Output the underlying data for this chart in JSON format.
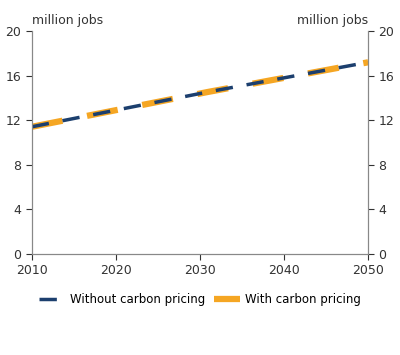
{
  "ylabel_left": "million jobs",
  "ylabel_right": "million jobs",
  "xlim": [
    2010,
    2050
  ],
  "ylim": [
    0,
    20
  ],
  "yticks": [
    0,
    4,
    8,
    12,
    16,
    20
  ],
  "xticks": [
    2010,
    2020,
    2030,
    2040,
    2050
  ],
  "line_without_cp": {
    "label": "Without carbon pricing",
    "color": "#1c3f6e",
    "x": [
      2010,
      2015,
      2020,
      2025,
      2030,
      2035,
      2040,
      2045,
      2050
    ],
    "y": [
      11.4,
      12.15,
      12.9,
      13.65,
      14.4,
      15.1,
      15.8,
      16.5,
      17.2
    ]
  },
  "line_with_cp": {
    "label": "With carbon pricing",
    "color": "#f5a623",
    "x": [
      2010,
      2015,
      2020,
      2025,
      2030,
      2035,
      2040,
      2045,
      2050
    ],
    "y": [
      11.4,
      12.15,
      12.9,
      13.65,
      14.4,
      15.1,
      15.8,
      16.5,
      17.2
    ]
  },
  "navy_linewidth": 2.5,
  "orange_linewidth": 4.5,
  "background_color": "#ffffff",
  "legend_fontsize": 8.5,
  "axis_label_fontsize": 9,
  "tick_fontsize": 9,
  "spine_color": "#888888"
}
